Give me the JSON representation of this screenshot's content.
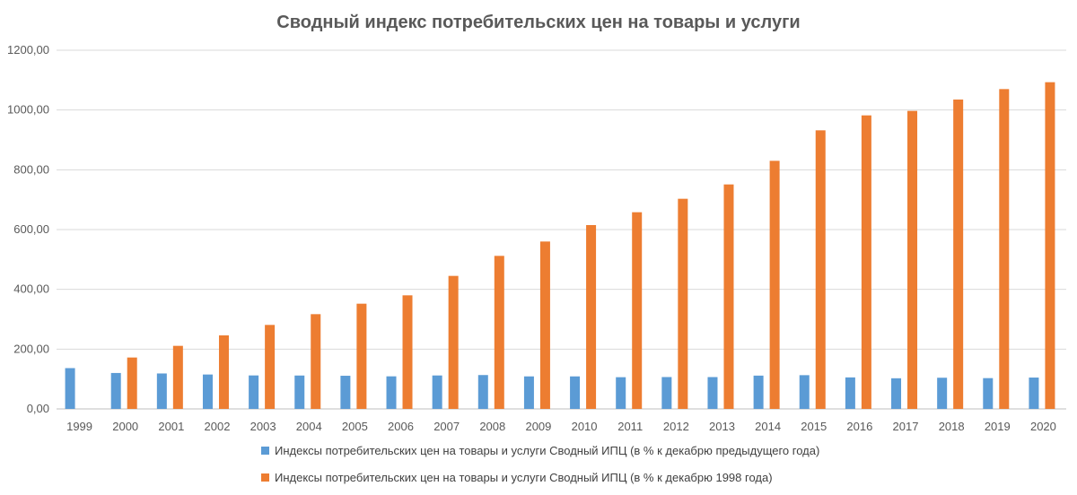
{
  "chart_data": {
    "type": "bar",
    "title": "Сводный индекс потребительских цен на товары и услуги",
    "xlabel": "",
    "ylabel": "",
    "ylim": [
      0,
      1200
    ],
    "yticks": [
      "0,00",
      "200,00",
      "400,00",
      "600,00",
      "800,00",
      "1000,00",
      "1200,00"
    ],
    "categories": [
      "1999",
      "2000",
      "2001",
      "2002",
      "2003",
      "2004",
      "2005",
      "2006",
      "2007",
      "2008",
      "2009",
      "2010",
      "2011",
      "2012",
      "2013",
      "2014",
      "2015",
      "2016",
      "2017",
      "2018",
      "2019",
      "2020"
    ],
    "series": [
      {
        "name": "Индексы потребительских цен на товары и услуги Сводный ИПЦ (в % к декабрю предыдущего года)",
        "color": "#5B9BD5",
        "values": [
          136.5,
          120.2,
          118.6,
          115.1,
          112.0,
          111.7,
          110.9,
          109.0,
          111.9,
          113.3,
          108.8,
          108.8,
          106.1,
          106.6,
          106.5,
          111.4,
          112.9,
          105.4,
          102.5,
          104.3,
          103.0,
          104.9
        ]
      },
      {
        "name": "Индексы потребительских цен на товары и услуги Сводный ИПЦ (в % к декабрю 1998 года)",
        "color": "#ED7D31",
        "values": [
          null,
          172,
          211,
          246,
          281,
          317,
          352,
          380,
          445,
          512,
          560,
          615,
          658,
          703,
          751,
          830,
          932,
          982,
          997,
          1035,
          1070,
          1093
        ]
      }
    ],
    "grid": true,
    "legend_position": "bottom"
  }
}
